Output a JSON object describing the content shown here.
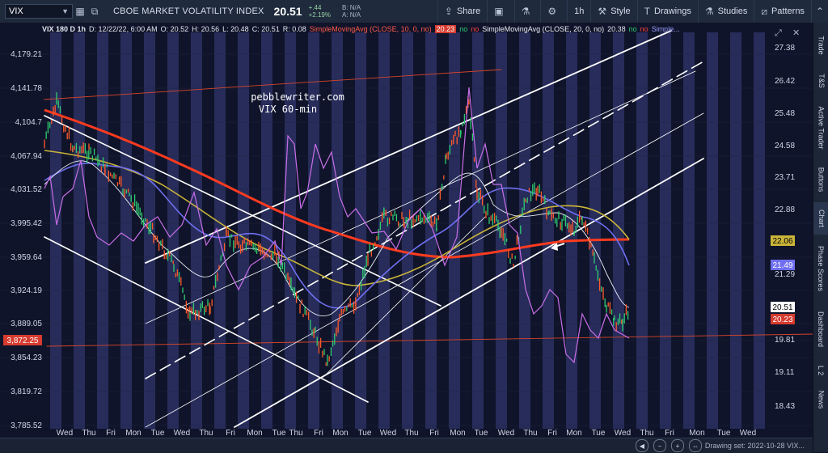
{
  "toolbar": {
    "symbol": "VIX",
    "symbol_name": "CBOE MARKET VOLATILITY INDEX",
    "last_price": "20.51",
    "change_abs": "+.44",
    "change_pct": "+2.19%",
    "bid": "B: N/A",
    "ask": "A: N/A",
    "share_label": "Share",
    "interval_label": "1h",
    "style_label": "Style",
    "drawings_label": "Drawings",
    "studies_label": "Studies",
    "patterns_label": "Patterns"
  },
  "legend": {
    "symbol": "VIX 180 D 1h",
    "date": "D: 12/22/22, 6:00 AM",
    "open": "O: 20.52",
    "high": "H: 20.56",
    "low": "L: 20.48",
    "close": "C: 20.51",
    "range": "R: 0.08",
    "ma1": "SimpleMovingAvg (CLOSE, 10, 0, no)",
    "ma1_val": "20.23",
    "no1": "no",
    "no2": "no",
    "ma2": "SimpleMovingAvg (CLOSE, 20, 0, no)",
    "ma2_val": "20.38",
    "no3": "no",
    "no4": "no",
    "ma3": "Simple..."
  },
  "annotation": {
    "line1": "pebblewriter.com",
    "line2": "VIX 60-min"
  },
  "left_axis": [
    "4,179.21",
    "4,141.78",
    "4,104.7",
    "4,067.94",
    "4,031.52",
    "3,995.42",
    "3,959.64",
    "3,924.19",
    "3,889.05",
    "3,872.25",
    "3,854.23",
    "3,819.72",
    "3,785.52"
  ],
  "right_axis": [
    "27.38",
    "26.42",
    "25.48",
    "24.58",
    "23.71",
    "22.88",
    "22.06",
    "21.29",
    "20.51",
    "20.23",
    "19.81",
    "19.11",
    "18.43"
  ],
  "right_badges": {
    "yellow": "22.06",
    "blue": "21.49",
    "white": "20.51",
    "red": "20.23",
    "left_red": "3,872.25"
  },
  "x_axis": [
    "Wed",
    "Thu",
    "Fri",
    "Mon",
    "Tue",
    "Wed",
    "Thu",
    "Fri",
    "Mon",
    "Tue",
    "Thu",
    "Fri",
    "Mon",
    "Tue",
    "Wed",
    "Thu",
    "Fri",
    "Mon",
    "Tue",
    "Wed",
    "Thu",
    "Fri",
    "Mon",
    "Tue",
    "Wed",
    "Thu",
    "Fri",
    "Mon",
    "Tue",
    "Wed"
  ],
  "sidebar_tabs": [
    "Trade",
    "T&S",
    "Active Trader",
    "Buttons",
    "Chart",
    "Phase Scores",
    "Dashboard",
    "L 2",
    "News"
  ],
  "status": {
    "drawing_set": "Drawing set: 2022-10-28 VIX..."
  },
  "colors": {
    "bg": "#10142a",
    "stripe": "#3b3f82",
    "ma_red": "#ff3b1f",
    "ma_yellow": "#c9b43a",
    "ma_blue": "#6f6ff0",
    "vix_violet": "#c86ee8"
  }
}
